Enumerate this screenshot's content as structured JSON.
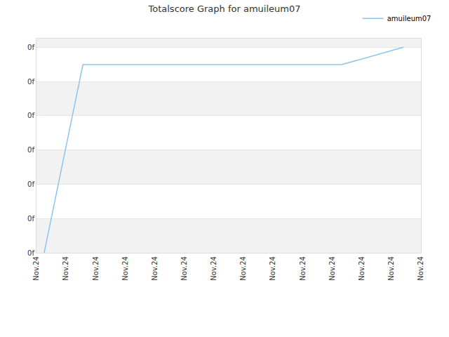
{
  "chart_data": {
    "type": "line",
    "title": "Totalscore Graph for amuileum07",
    "x": [
      0.26,
      1.57,
      10.32,
      12.41
    ],
    "series": [
      {
        "name": "amuileum07",
        "color": "#8ec3ee",
        "values": [
          0,
          5.49,
          5.49,
          6
        ]
      }
    ],
    "xlim": [
      0,
      13
    ],
    "xticks": [
      {
        "value": 0,
        "label": "Nov.24"
      },
      {
        "value": 1,
        "label": "Nov.24"
      },
      {
        "value": 2,
        "label": "Nov.24"
      },
      {
        "value": 3,
        "label": "Nov.24"
      },
      {
        "value": 4,
        "label": "Nov.24"
      },
      {
        "value": 5,
        "label": "Nov.24"
      },
      {
        "value": 6,
        "label": "Nov.24"
      },
      {
        "value": 7,
        "label": "Nov.24"
      },
      {
        "value": 8,
        "label": "Nov.24"
      },
      {
        "value": 9,
        "label": "Nov.24"
      },
      {
        "value": 10,
        "label": "Nov.24"
      },
      {
        "value": 11,
        "label": "Nov.24"
      },
      {
        "value": 12,
        "label": "Nov.24"
      },
      {
        "value": 13,
        "label": "Nov.24"
      }
    ],
    "ylim": [
      0,
      6.25
    ],
    "yticks": [
      {
        "value": 0,
        "label": "0f"
      },
      {
        "value": 1,
        "label": "0f"
      },
      {
        "value": 2,
        "label": "0f"
      },
      {
        "value": 3,
        "label": "0f"
      },
      {
        "value": 4,
        "label": "0f"
      },
      {
        "value": 5,
        "label": "0f"
      },
      {
        "value": 6,
        "label": "0f"
      }
    ],
    "grid": true,
    "legend": "top right"
  }
}
